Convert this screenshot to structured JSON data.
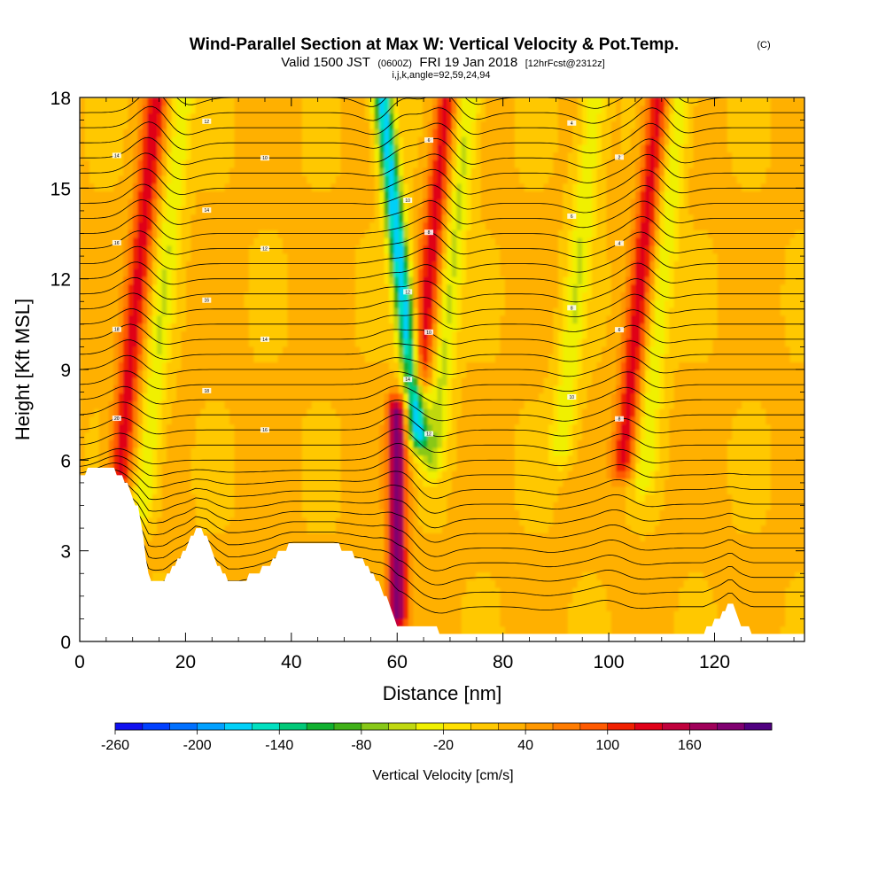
{
  "chart_data": {
    "type": "heatmap",
    "title": "Wind-Parallel Section at Max W: Vertical Velocity & Pot.Temp.",
    "title_mark": "(C)",
    "subtitle": {
      "valid": "Valid 1500 JST",
      "zulu": "(0600Z)",
      "date": "FRI 19 Jan 2018",
      "forecast": "[12hrFcst@2312z]"
    },
    "indices": "i,j,k,angle=92,59,24,94",
    "xlabel": "Distance [nm]",
    "ylabel": "Height [Kft MSL]",
    "xlim": [
      0,
      137
    ],
    "ylim": [
      0,
      18
    ],
    "x_ticks": [
      "0",
      "20",
      "40",
      "60",
      "80",
      "100",
      "120"
    ],
    "y_ticks": [
      "0",
      "3",
      "6",
      "9",
      "12",
      "15",
      "18"
    ],
    "colorbar": {
      "label": "Vertical Velocity [cm/s]",
      "tick_labels": [
        "-260",
        "-200",
        "-140",
        "-80",
        "-20",
        "40",
        "100",
        "160"
      ],
      "colors": [
        "#1010f0",
        "#0040ff",
        "#0070ff",
        "#00a0ff",
        "#00d0f8",
        "#00e0c0",
        "#00c878",
        "#10b030",
        "#40b018",
        "#88c818",
        "#c0d810",
        "#f0f000",
        "#ffe000",
        "#ffc800",
        "#ffb000",
        "#ff9800",
        "#ff7c00",
        "#ff5a00",
        "#f02000",
        "#e00018",
        "#c0003c",
        "#a0005a",
        "#800070",
        "#500080"
      ]
    },
    "velocity_features": [
      {
        "x": 10,
        "z_range": [
          5.5,
          18
        ],
        "peak_cm_s": 110,
        "kind": "updraft"
      },
      {
        "x": 15,
        "z_range": [
          4.5,
          18
        ],
        "peak_cm_s": -60,
        "kind": "downdraft"
      },
      {
        "x": 60,
        "z_range": [
          1.0,
          7.5
        ],
        "peak_cm_s": 175,
        "kind": "updraft"
      },
      {
        "x": 62,
        "z_range": [
          7.0,
          18
        ],
        "peak_cm_s": -200,
        "kind": "downdraft"
      },
      {
        "x": 65,
        "z_range": [
          9.0,
          18
        ],
        "peak_cm_s": 110,
        "kind": "updraft"
      },
      {
        "x": 69,
        "z_range": [
          6.0,
          18
        ],
        "peak_cm_s": -70,
        "kind": "downdraft"
      },
      {
        "x": 93,
        "z_range": [
          6.5,
          18
        ],
        "peak_cm_s": -60,
        "kind": "downdraft"
      },
      {
        "x": 105,
        "z_range": [
          6.0,
          18
        ],
        "peak_cm_s": 110,
        "kind": "updraft"
      },
      {
        "x": 109,
        "z_range": [
          5.5,
          18
        ],
        "peak_cm_s": -60,
        "kind": "downdraft"
      }
    ],
    "terrain_kft": [
      [
        0,
        5.5
      ],
      [
        3,
        5.8
      ],
      [
        7,
        5.6
      ],
      [
        9,
        5.2
      ],
      [
        11,
        4.4
      ],
      [
        12,
        3.4
      ],
      [
        13,
        2.2
      ],
      [
        14,
        2.0
      ],
      [
        16,
        2.0
      ],
      [
        18,
        2.6
      ],
      [
        20,
        3.0
      ],
      [
        22,
        3.8
      ],
      [
        24,
        3.5
      ],
      [
        26,
        2.6
      ],
      [
        28,
        2.0
      ],
      [
        30,
        2.0
      ],
      [
        33,
        2.2
      ],
      [
        36,
        2.6
      ],
      [
        38,
        3.0
      ],
      [
        40,
        3.2
      ],
      [
        44,
        3.2
      ],
      [
        48,
        3.2
      ],
      [
        51,
        3.0
      ],
      [
        54,
        2.6
      ],
      [
        57,
        1.8
      ],
      [
        59,
        1.0
      ],
      [
        60,
        0.5
      ],
      [
        63,
        0.5
      ],
      [
        66,
        0.5
      ],
      [
        69,
        0.3
      ],
      [
        75,
        0.3
      ],
      [
        90,
        0.3
      ],
      [
        105,
        0.3
      ],
      [
        118,
        0.3
      ],
      [
        121,
        0.8
      ],
      [
        123,
        1.3
      ],
      [
        125,
        0.6
      ],
      [
        127,
        0.3
      ],
      [
        137,
        0.3
      ]
    ],
    "contour_labels": [
      "20",
      "18",
      "16",
      "14",
      "12",
      "10",
      "8",
      "6",
      "4",
      "2",
      "0",
      "-2",
      "-4"
    ]
  }
}
